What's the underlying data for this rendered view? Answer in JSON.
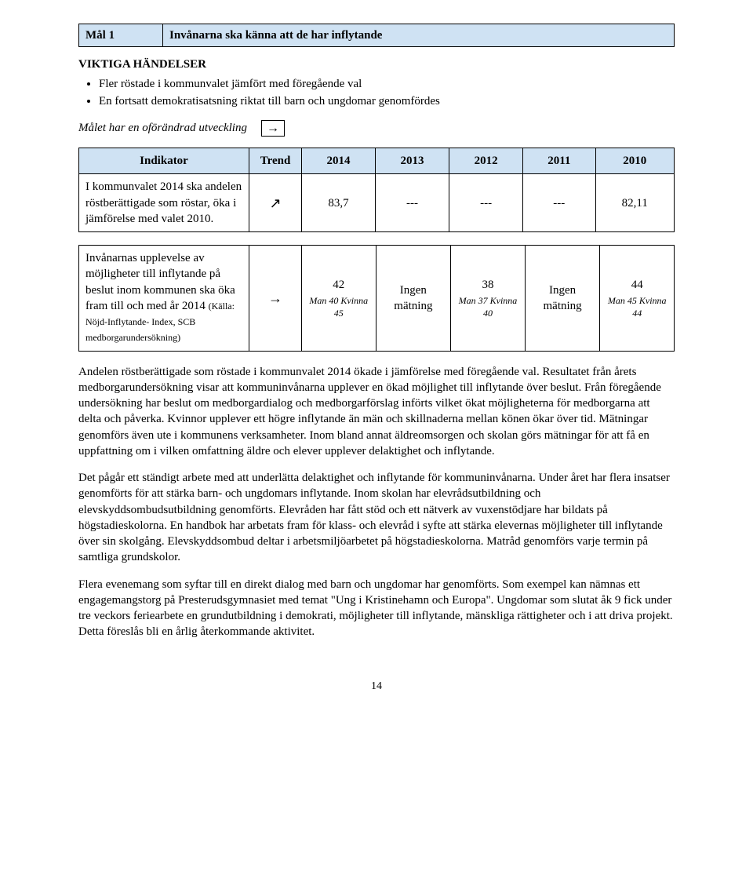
{
  "goal": {
    "label": "Mål 1",
    "title": "Invånarna ska känna att de har inflytande"
  },
  "events_heading": "VIKTIGA HÄNDELSER",
  "events": [
    "Fler röstade i kommunvalet jämfört med föregående val",
    "En fortsatt demokratisatsning riktat till barn och ungdomar genomfördes"
  ],
  "status": {
    "label": "Målet har en oförändrad utveckling",
    "arrow": "→"
  },
  "table_header": {
    "indicator": "Indikator",
    "trend": "Trend",
    "y2014": "2014",
    "y2013": "2013",
    "y2012": "2012",
    "y2011": "2011",
    "y2010": "2010"
  },
  "row1": {
    "desc": "I kommunvalet 2014 ska andelen röstberättigade som röstar, öka i jämförelse med valet 2010.",
    "trend": "↗",
    "y2014": "83,7",
    "y2013": "---",
    "y2012": "---",
    "y2011": "---",
    "y2010": "82,11"
  },
  "row2": {
    "desc": "Invånarnas upplevelse av möjligheter till inflytande på beslut inom kommunen ska öka fram till och med år 2014",
    "note": "(Källa: Nöjd-Inflytande- Index, SCB medborgarundersökning)",
    "trend": "→",
    "y2014_main": "42",
    "y2014_sub": "Man 40\nKvinna 45",
    "y2013": "Ingen mätning",
    "y2012_main": "38",
    "y2012_sub": "Man 37\nKvinna 40",
    "y2011": "Ingen mätning",
    "y2010_main": "44",
    "y2010_sub": "Man 45\nKvinna 44"
  },
  "para1": "Andelen röstberättigade som röstade i kommunvalet 2014 ökade i jämförelse med föregående val. Resultatet från årets medborgarundersökning visar att kommuninvånarna upplever en ökad möjlighet till inflytande över beslut. Från föregående undersökning har beslut om medborgardialog och medborgarförslag införts vilket ökat möjligheterna för medborgarna att delta och påverka. Kvinnor upplever ett högre inflytande än män och skillnaderna mellan könen ökar över tid. Mätningar genomförs även ute i kommunens verksamheter. Inom bland annat äldreomsorgen och skolan görs mätningar för att få en uppfattning om i vilken omfattning äldre och elever upplever delaktighet och inflytande.",
  "para2": "Det pågår ett ständigt arbete med att underlätta delaktighet och inflytande för kommuninvånarna. Under året har flera insatser genomförts för att stärka barn- och ungdomars inflytande. Inom skolan har elevrådsutbildning och elevskyddsombudsutbildning genomförts. Elevråden har fått stöd och ett nätverk av vuxenstödjare har bildats på högstadieskolorna. En handbok har arbetats fram för klass- och elevråd i syfte att stärka elevernas möjligheter till inflytande över sin skolgång. Elevskyddsombud deltar i arbetsmiljöarbetet på högstadieskolorna. Matråd genomförs varje termin på samtliga grundskolor.",
  "para3": "Flera evenemang som syftar till en direkt dialog med barn och ungdomar har genomförts. Som exempel kan nämnas ett engagemangstorg på Presterudsgymnasiet med temat \"Ung i Kristinehamn och Europa\". Ungdomar som slutat åk 9 fick under tre veckors feriearbete en grundutbildning i demokrati, möjligheter till inflytande, mänskliga rättigheter och i att driva projekt. Detta föreslås bli en årlig återkommande aktivitet.",
  "page_number": "14"
}
